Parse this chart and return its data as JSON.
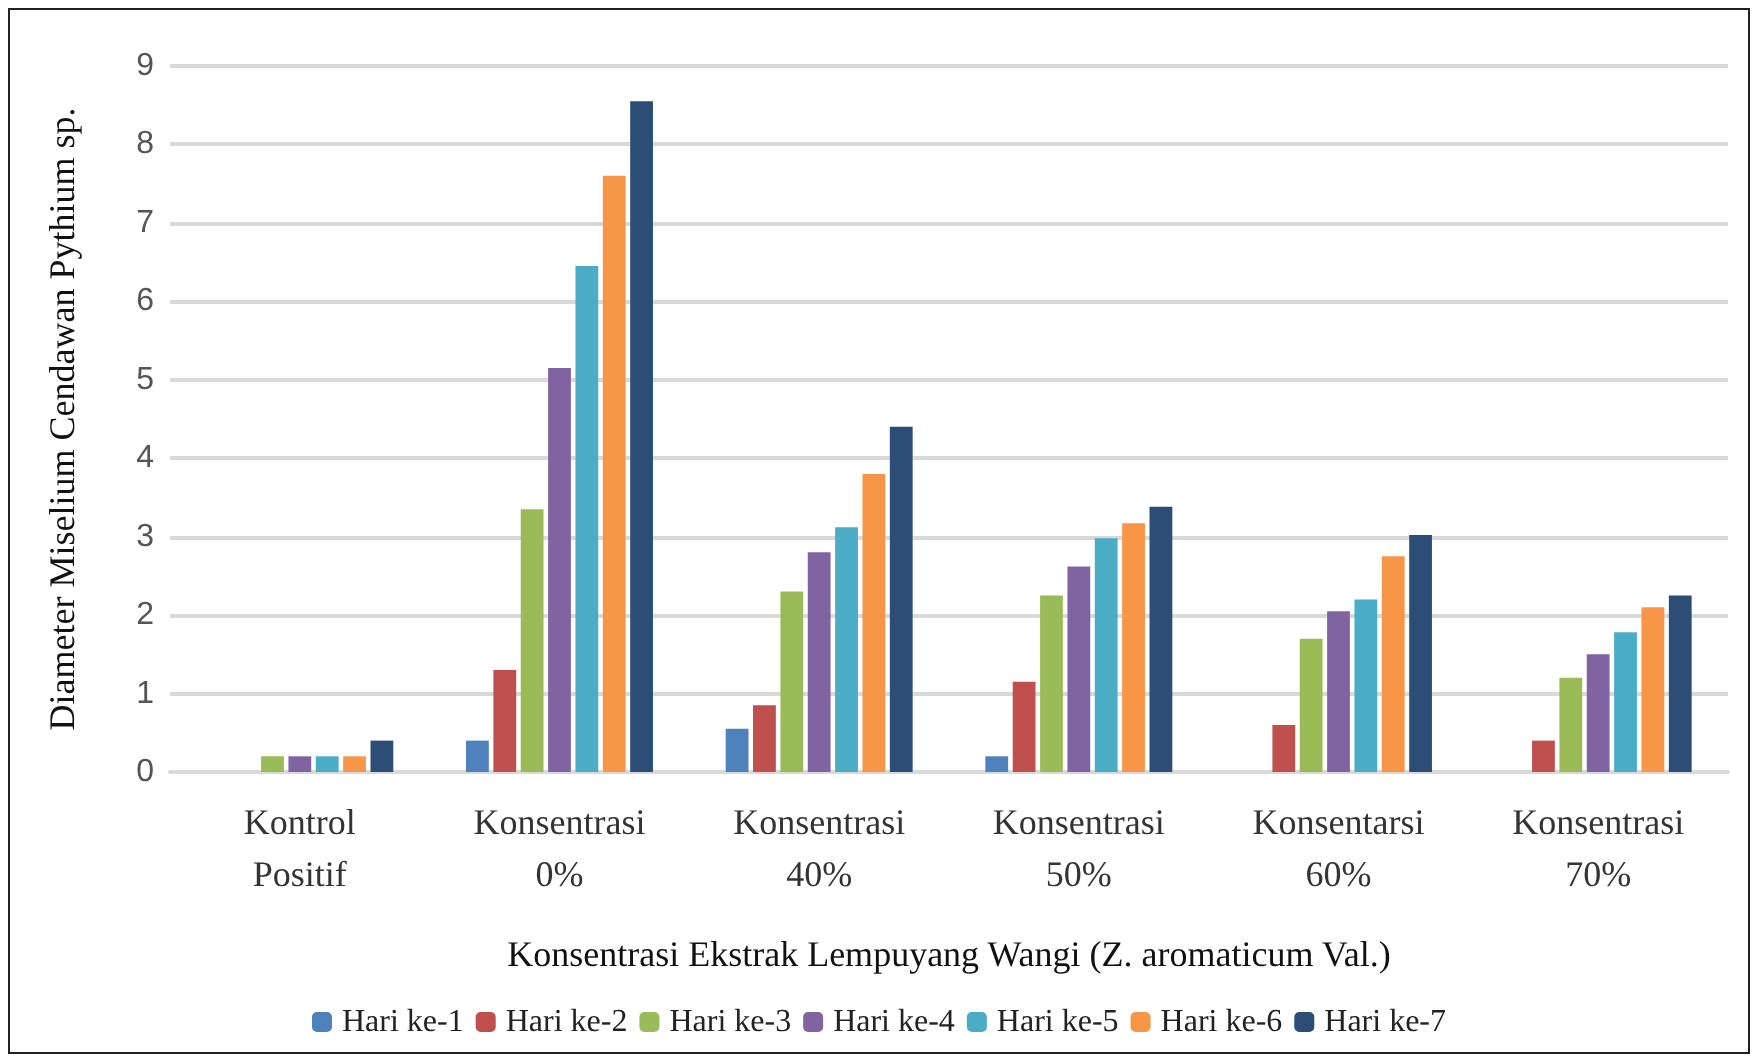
{
  "chart_data": {
    "type": "bar",
    "xlabel": "Konsentrasi Ekstrak Lempuyang Wangi (Z. aromaticum Val.)",
    "ylabel": "Diameter Miselium Cendawan Pythium sp.",
    "categories": [
      "Kontrol\nPositif",
      "Konsentrasi\n0%",
      "Konsentrasi\n40%",
      "Konsentrasi\n50%",
      "Konsentarsi\n60%",
      "Konsentrasi\n70%"
    ],
    "series": [
      {
        "name": "Hari ke-1",
        "color": "#4f81bd",
        "values": [
          null,
          0.4,
          0.55,
          0.2,
          null,
          null
        ]
      },
      {
        "name": "Hari ke-2",
        "color": "#c0504d",
        "values": [
          null,
          1.3,
          0.85,
          1.15,
          0.6,
          0.4
        ]
      },
      {
        "name": "Hari ke-3",
        "color": "#9bbb59",
        "values": [
          0.2,
          3.35,
          2.3,
          2.25,
          1.7,
          1.2
        ]
      },
      {
        "name": "Hari ke-4",
        "color": "#8064a2",
        "values": [
          0.2,
          5.15,
          2.8,
          2.62,
          2.05,
          1.5
        ]
      },
      {
        "name": "Hari ke-5",
        "color": "#4bacc6",
        "values": [
          0.2,
          6.45,
          3.12,
          2.98,
          2.2,
          1.78
        ]
      },
      {
        "name": "Hari ke-6",
        "color": "#f79646",
        "values": [
          0.2,
          7.6,
          3.8,
          3.17,
          2.75,
          2.1
        ]
      },
      {
        "name": "Hari ke-7",
        "color": "#2c4d75",
        "values": [
          0.4,
          8.55,
          4.4,
          3.38,
          3.02,
          2.25
        ]
      }
    ],
    "ylim": [
      0,
      9
    ],
    "yticks": [
      0,
      1,
      2,
      3,
      4,
      5,
      6,
      7,
      8,
      9
    ],
    "grid": "y",
    "legend": "bottom"
  }
}
